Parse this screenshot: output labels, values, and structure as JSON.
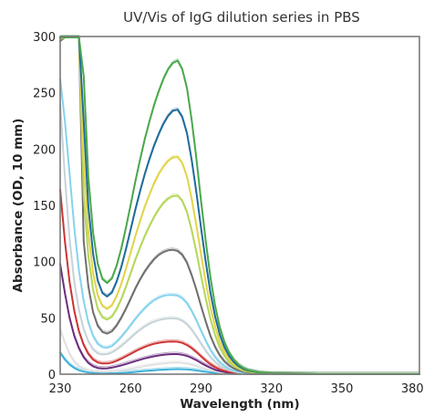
{
  "chart_data": {
    "type": "line",
    "title": "UV/Vis of IgG dilution series in PBS",
    "xlabel": "Wavelength (nm)",
    "ylabel": "Absorbance (OD, 10 mm)",
    "xlim": [
      230,
      383
    ],
    "ylim": [
      0,
      300
    ],
    "xticks": [
      230,
      260,
      290,
      320,
      350,
      380
    ],
    "yticks": [
      0,
      50,
      100,
      150,
      200,
      250,
      300
    ],
    "grid": false,
    "legend": "none",
    "x": [
      230,
      232,
      234,
      236,
      238,
      240,
      242,
      244,
      246,
      248,
      250,
      252,
      254,
      256,
      258,
      260,
      262,
      264,
      266,
      268,
      270,
      272,
      274,
      276,
      278,
      280,
      282,
      284,
      286,
      288,
      290,
      292,
      294,
      296,
      298,
      300,
      302,
      304,
      306,
      308,
      310,
      315,
      320,
      330,
      340,
      350,
      360,
      370,
      383
    ],
    "series": [
      {
        "color": "#3bb0d8",
        "values": [
          19,
          13,
          8.5,
          5.5,
          3.5,
          2.3,
          1.5,
          1.1,
          0.8,
          0.7,
          0.7,
          0.8,
          0.9,
          1.1,
          1.3,
          1.6,
          2.0,
          2.4,
          2.8,
          3.2,
          3.5,
          3.8,
          4.0,
          4.2,
          4.4,
          4.5,
          4.4,
          4.2,
          3.8,
          3.3,
          2.7,
          2.1,
          1.6,
          1.2,
          0.8,
          0.6,
          0.4,
          0.3,
          0.2,
          0.1,
          0.1,
          0,
          0,
          0,
          0,
          0,
          0,
          0,
          0
        ]
      },
      {
        "color": "#e0e0e0",
        "values": [
          40,
          28,
          18,
          11,
          7,
          5,
          3.5,
          2.8,
          2.4,
          2.2,
          2.3,
          2.5,
          2.9,
          3.4,
          4.0,
          4.7,
          5.5,
          6.3,
          7.1,
          7.8,
          8.5,
          9.1,
          9.6,
          10.0,
          10.2,
          10.3,
          10.0,
          9.4,
          8.5,
          7.3,
          6.0,
          4.7,
          3.5,
          2.5,
          1.7,
          1.1,
          0.7,
          0.5,
          0.3,
          0.2,
          0.1,
          0,
          0,
          0,
          0,
          0,
          0,
          0,
          0
        ]
      },
      {
        "color": "#6b2d7e",
        "values": [
          98,
          72,
          50,
          34,
          23,
          15,
          10,
          7,
          5.5,
          5,
          5.2,
          5.8,
          6.7,
          7.8,
          9.0,
          10.3,
          11.6,
          12.8,
          14.0,
          15.0,
          15.9,
          16.6,
          17.2,
          17.6,
          17.8,
          17.8,
          17.3,
          16.2,
          14.5,
          12.4,
          10.0,
          7.7,
          5.7,
          4.0,
          2.8,
          1.9,
          1.3,
          0.9,
          0.6,
          0.4,
          0.3,
          0.1,
          0.05,
          0,
          0,
          0,
          0,
          0,
          0
        ]
      },
      {
        "color": "#cc3333",
        "values": [
          164,
          118,
          82,
          56,
          38,
          26,
          18,
          13,
          10.5,
          9.5,
          9.5,
          10.3,
          11.8,
          13.7,
          15.8,
          18.0,
          20.3,
          22.4,
          24.2,
          25.8,
          27.0,
          27.9,
          28.5,
          28.9,
          29.0,
          28.8,
          27.8,
          25.9,
          23.1,
          19.6,
          15.8,
          12.1,
          8.8,
          6.2,
          4.3,
          2.9,
          2.0,
          1.3,
          0.9,
          0.6,
          0.4,
          0.15,
          0.05,
          0,
          0,
          0,
          0,
          0,
          0
        ]
      },
      {
        "color": "#c7d2d8",
        "values": [
          240,
          175,
          120,
          82,
          57,
          40,
          29,
          22,
          18.5,
          17.5,
          17.8,
          19.3,
          21.8,
          25.0,
          28.6,
          32.3,
          36.0,
          39.4,
          42.4,
          44.8,
          46.7,
          48.1,
          49.0,
          49.5,
          49.6,
          49.2,
          47.5,
          44.3,
          39.5,
          33.5,
          27.0,
          20.7,
          15.2,
          10.7,
          7.4,
          5.0,
          3.4,
          2.3,
          1.5,
          1.0,
          0.7,
          0.25,
          0.1,
          0,
          0,
          0,
          0,
          0,
          0
        ]
      },
      {
        "color": "#85d3ec",
        "values": [
          262,
          225,
          178,
          130,
          92,
          65,
          46,
          34,
          27,
          24,
          23.5,
          25,
          28.5,
          33,
          38,
          43.5,
          49,
          54,
          58.5,
          62.5,
          65.7,
          68,
          69.6,
          70.3,
          70.4,
          69.8,
          67.5,
          63,
          56.2,
          47.8,
          38.5,
          29.5,
          21.6,
          15.2,
          10.5,
          7.1,
          4.8,
          3.2,
          2.1,
          1.4,
          0.9,
          0.35,
          0.1,
          0,
          0,
          0,
          0,
          0,
          0
        ]
      },
      {
        "color": "#6f6f6f",
        "values": [
          296,
          300,
          300,
          300,
          300,
          118,
          78,
          55,
          43,
          37.5,
          36,
          38,
          43,
          50,
          58,
          67,
          76,
          84,
          91,
          97,
          102,
          106,
          108.5,
          110,
          110.5,
          109.5,
          106,
          99,
          88,
          75,
          60.5,
          46.5,
          34,
          24,
          16.5,
          11.2,
          7.6,
          5.1,
          3.4,
          2.2,
          1.5,
          0.5,
          0.2,
          0.05,
          0,
          0,
          0,
          0,
          0
        ]
      },
      {
        "color": "#b5d65a",
        "values": [
          298,
          300,
          300,
          300,
          300,
          158,
          105,
          75,
          58,
          50.5,
          48.5,
          51,
          57.5,
          66.5,
          77.5,
          89.5,
          101.5,
          112.5,
          122.5,
          131.5,
          139.5,
          146.5,
          152,
          156,
          158.2,
          158.5,
          154,
          144,
          128,
          108.5,
          87.5,
          67,
          49,
          34.5,
          23.6,
          16,
          10.8,
          7.2,
          4.8,
          3.1,
          2.1,
          0.7,
          0.25,
          0.05,
          0,
          0,
          0,
          0,
          0
        ]
      },
      {
        "color": "#e2d44a",
        "values": [
          299,
          300,
          300,
          300,
          300,
          190,
          126,
          90,
          70,
          60.5,
          58,
          61,
          69,
          80,
          93.5,
          108,
          122.5,
          136,
          148.5,
          159.5,
          169.5,
          178,
          184.5,
          189.5,
          192.5,
          193,
          187.5,
          175.5,
          156,
          132,
          106.5,
          81.5,
          59.5,
          42,
          28.7,
          19.5,
          13.1,
          8.8,
          5.8,
          3.8,
          2.5,
          0.85,
          0.3,
          0.05,
          0,
          0,
          0,
          0,
          0
        ]
      },
      {
        "color": "#1f6a9b",
        "values": [
          300,
          300,
          300,
          300,
          300,
          225,
          149,
          107,
          83,
          72,
          69,
          72.5,
          82,
          95,
          111,
          128.5,
          146,
          162.5,
          177.5,
          191,
          203,
          213.5,
          222.5,
          229.5,
          234,
          235,
          228.5,
          214,
          190.5,
          161.5,
          130,
          99.5,
          72.5,
          51,
          35,
          23.7,
          16,
          10.7,
          7.1,
          4.6,
          3.1,
          1.05,
          0.35,
          0.05,
          0,
          0,
          0,
          0,
          0
        ]
      },
      {
        "color": "#49a84a",
        "values": [
          300,
          300,
          300,
          300,
          300,
          265,
          175,
          126,
          98,
          84.5,
          81,
          85,
          96,
          111.5,
          130,
          150.5,
          171,
          190.5,
          208.5,
          224.5,
          239,
          251.5,
          262.5,
          271,
          276.5,
          278.5,
          271,
          254,
          226,
          191.5,
          154,
          118,
          86,
          60.5,
          41.5,
          28.1,
          19,
          12.7,
          8.4,
          5.5,
          3.6,
          1.25,
          0.4,
          0.05,
          0,
          0,
          0,
          0,
          0
        ]
      }
    ]
  }
}
